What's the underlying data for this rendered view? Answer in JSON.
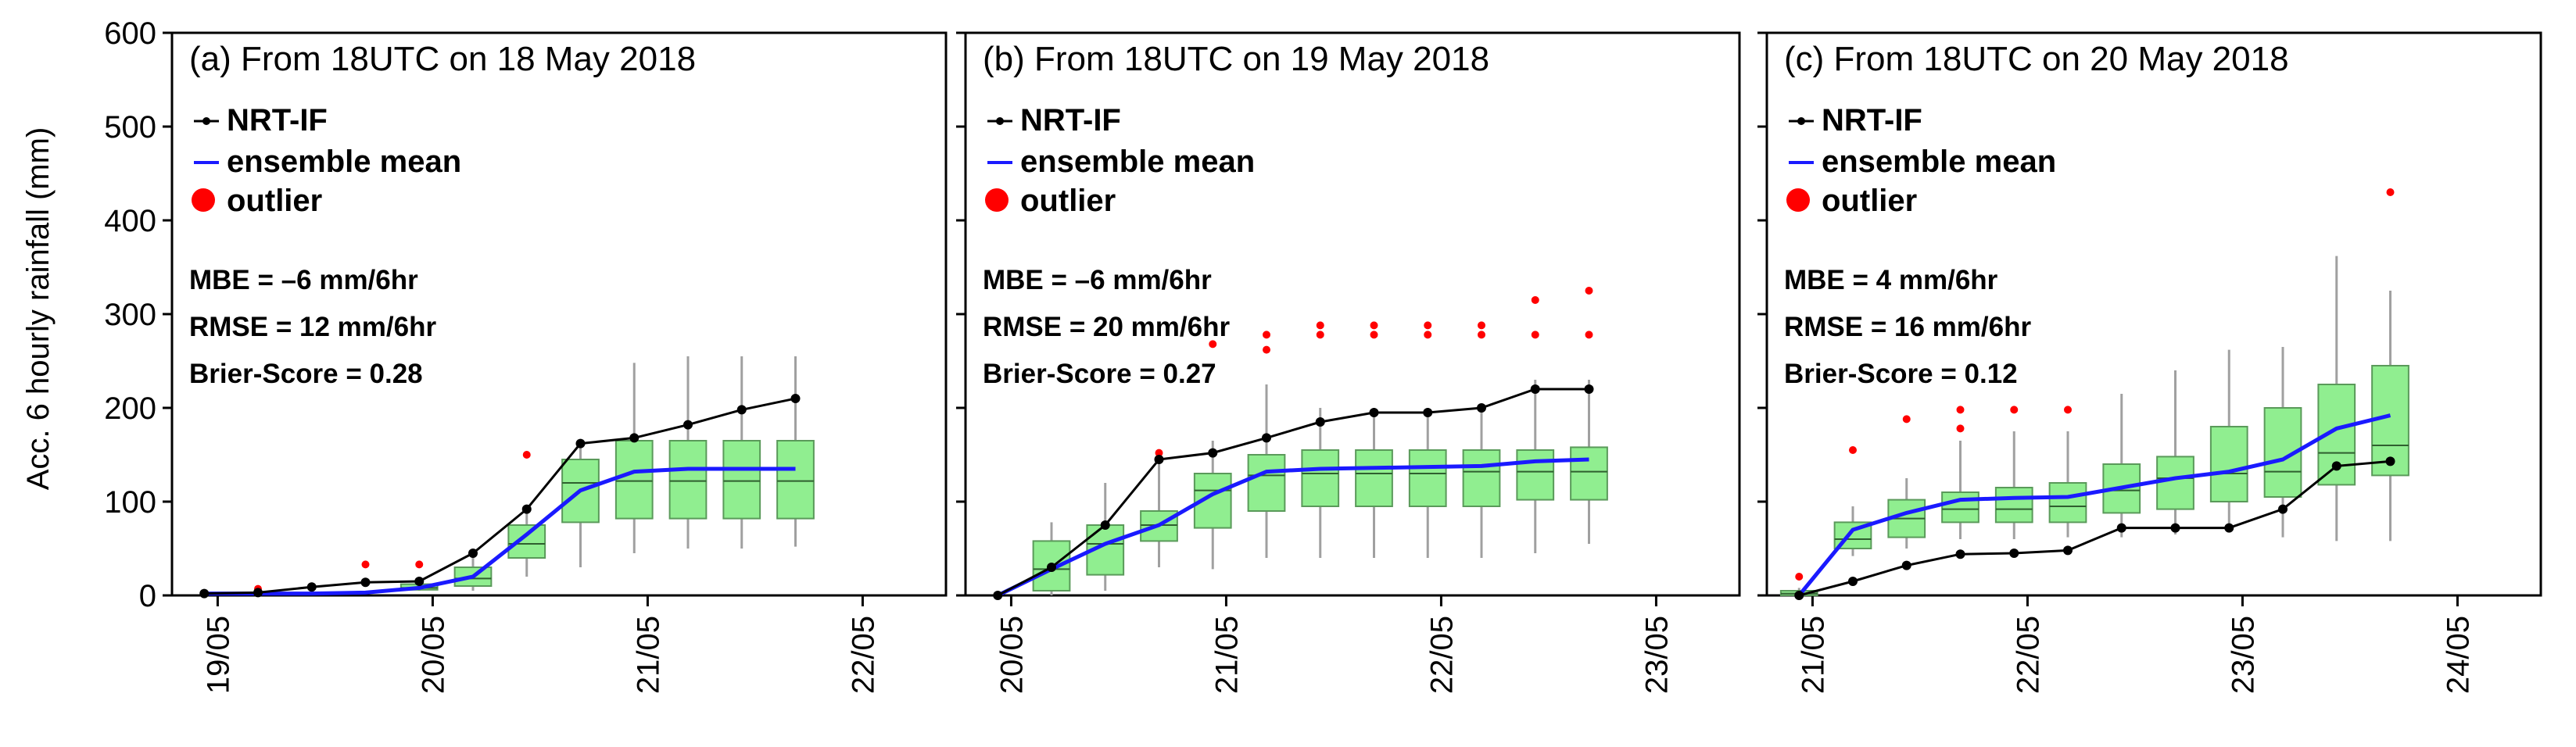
{
  "colors": {
    "nrt": "#000000",
    "mean": "#1a1aff",
    "outlier": "#ff0000",
    "box_fill": "#90ee90",
    "box_edge": "#5a9a5a",
    "whisker": "#a0a0a0"
  },
  "chart_data": [
    {
      "type": "box",
      "title": "(a) From 18UTC on 18 May 2018",
      "ylabel": "Acc. 6 hourly rainfall (mm)",
      "ylim": [
        0,
        600
      ],
      "yticks": [
        "0",
        "100",
        "200",
        "300",
        "400",
        "500",
        "600"
      ],
      "xlim": [
        -0.6,
        13.8
      ],
      "xticks": [
        {
          "label": "19/05",
          "pos": 0.25
        },
        {
          "label": "20/05",
          "pos": 4.25
        },
        {
          "label": "21/05",
          "pos": 8.25
        },
        {
          "label": "22/05",
          "pos": 12.25
        }
      ],
      "legend": {
        "nrt": "NRT-IF",
        "mean": "ensemble mean",
        "outlier": "outlier"
      },
      "stats": {
        "mbe": "MBE = –6 mm/6hr",
        "rmse": "RMSE = 12 mm/6hr",
        "brier": "Brier-Score = 0.28"
      },
      "nrt_if": [
        2,
        3,
        9,
        14,
        15,
        45,
        92,
        162,
        168,
        182,
        198,
        210
      ],
      "ensemble_mean": [
        2,
        2,
        2,
        3,
        8,
        20,
        65,
        112,
        132,
        135,
        135,
        135
      ],
      "boxes": [
        {
          "i": 4,
          "min": 5,
          "q1": 6,
          "median": 8,
          "q3": 12,
          "max": 18
        },
        {
          "i": 5,
          "min": 5,
          "q1": 10,
          "median": 18,
          "q3": 30,
          "max": 45
        },
        {
          "i": 6,
          "min": 20,
          "q1": 40,
          "median": 55,
          "q3": 75,
          "max": 92
        },
        {
          "i": 7,
          "min": 30,
          "q1": 78,
          "median": 120,
          "q3": 145,
          "max": 160
        },
        {
          "i": 8,
          "min": 45,
          "q1": 82,
          "median": 122,
          "q3": 165,
          "max": 248
        },
        {
          "i": 9,
          "min": 50,
          "q1": 82,
          "median": 122,
          "q3": 165,
          "max": 255
        },
        {
          "i": 10,
          "min": 50,
          "q1": 82,
          "median": 122,
          "q3": 165,
          "max": 255
        },
        {
          "i": 11,
          "min": 52,
          "q1": 82,
          "median": 122,
          "q3": 165,
          "max": 255
        }
      ],
      "outliers": [
        [
          1,
          7
        ],
        [
          3,
          33
        ],
        [
          4,
          33
        ],
        [
          6,
          150
        ]
      ]
    },
    {
      "type": "box",
      "title": "(b) From 18UTC on 19 May 2018",
      "ylim": [
        0,
        600
      ],
      "yticks": [
        "0",
        "100",
        "200",
        "300",
        "400",
        "500",
        "600"
      ],
      "xlim": [
        -0.6,
        13.8
      ],
      "xticks": [
        {
          "label": "20/05",
          "pos": 0.25
        },
        {
          "label": "21/05",
          "pos": 4.25
        },
        {
          "label": "22/05",
          "pos": 8.25
        },
        {
          "label": "23/05",
          "pos": 12.25
        }
      ],
      "legend": {
        "nrt": "NRT-IF",
        "mean": "ensemble mean",
        "outlier": "outlier"
      },
      "stats": {
        "mbe": "MBE = –6 mm/6hr",
        "rmse": "RMSE = 20 mm/6hr",
        "brier": "Brier-Score = 0.27"
      },
      "nrt_if": [
        0,
        30,
        75,
        145,
        152,
        168,
        185,
        195,
        195,
        200,
        220,
        220
      ],
      "ensemble_mean": [
        0,
        28,
        55,
        75,
        108,
        132,
        135,
        136,
        137,
        138,
        143,
        145
      ],
      "boxes": [
        {
          "i": 1,
          "min": 0,
          "q1": 5,
          "median": 28,
          "q3": 58,
          "max": 78
        },
        {
          "i": 2,
          "min": 5,
          "q1": 22,
          "median": 55,
          "q3": 75,
          "max": 120
        },
        {
          "i": 3,
          "min": 30,
          "q1": 58,
          "median": 75,
          "q3": 90,
          "max": 150
        },
        {
          "i": 4,
          "min": 28,
          "q1": 72,
          "median": 112,
          "q3": 130,
          "max": 165
        },
        {
          "i": 5,
          "min": 40,
          "q1": 90,
          "median": 128,
          "q3": 150,
          "max": 225
        },
        {
          "i": 6,
          "min": 40,
          "q1": 95,
          "median": 130,
          "q3": 155,
          "max": 200
        },
        {
          "i": 7,
          "min": 40,
          "q1": 95,
          "median": 130,
          "q3": 155,
          "max": 200
        },
        {
          "i": 8,
          "min": 40,
          "q1": 95,
          "median": 130,
          "q3": 155,
          "max": 200
        },
        {
          "i": 9,
          "min": 40,
          "q1": 95,
          "median": 132,
          "q3": 155,
          "max": 200
        },
        {
          "i": 10,
          "min": 45,
          "q1": 102,
          "median": 132,
          "q3": 155,
          "max": 230
        },
        {
          "i": 11,
          "min": 55,
          "q1": 102,
          "median": 132,
          "q3": 158,
          "max": 230
        }
      ],
      "outliers": [
        [
          3,
          152
        ],
        [
          4,
          268
        ],
        [
          5,
          262
        ],
        [
          5,
          278
        ],
        [
          6,
          278
        ],
        [
          6,
          288
        ],
        [
          7,
          278
        ],
        [
          7,
          288
        ],
        [
          8,
          278
        ],
        [
          8,
          288
        ],
        [
          9,
          278
        ],
        [
          9,
          288
        ],
        [
          10,
          278
        ],
        [
          10,
          315
        ],
        [
          11,
          278
        ],
        [
          11,
          325
        ]
      ]
    },
    {
      "type": "box",
      "title": "(c) From 18UTC on 20 May 2018",
      "ylim": [
        0,
        600
      ],
      "yticks": [
        "0",
        "100",
        "200",
        "300",
        "400",
        "500",
        "600"
      ],
      "xlim": [
        -0.6,
        13.8
      ],
      "xticks": [
        {
          "label": "21/05",
          "pos": 0.25
        },
        {
          "label": "22/05",
          "pos": 4.25
        },
        {
          "label": "23/05",
          "pos": 8.25
        },
        {
          "label": "24/05",
          "pos": 12.25
        }
      ],
      "legend": {
        "nrt": "NRT-IF",
        "mean": "ensemble mean",
        "outlier": "outlier"
      },
      "stats": {
        "mbe": "MBE = 4 mm/6hr",
        "rmse": "RMSE = 16 mm/6hr",
        "brier": "Brier-Score = 0.12"
      },
      "nrt_if": [
        0,
        15,
        32,
        44,
        45,
        48,
        72,
        72,
        72,
        92,
        138,
        143
      ],
      "ensemble_mean": [
        0,
        70,
        88,
        102,
        104,
        105,
        115,
        125,
        132,
        145,
        178,
        192
      ],
      "boxes": [
        {
          "i": 0,
          "min": 0,
          "q1": 0,
          "median": 2,
          "q3": 5,
          "max": 8
        },
        {
          "i": 1,
          "min": 42,
          "q1": 50,
          "median": 60,
          "q3": 78,
          "max": 95
        },
        {
          "i": 2,
          "min": 50,
          "q1": 62,
          "median": 82,
          "q3": 102,
          "max": 125
        },
        {
          "i": 3,
          "min": 60,
          "q1": 78,
          "median": 92,
          "q3": 110,
          "max": 165
        },
        {
          "i": 4,
          "min": 60,
          "q1": 78,
          "median": 92,
          "q3": 115,
          "max": 175
        },
        {
          "i": 5,
          "min": 62,
          "q1": 78,
          "median": 95,
          "q3": 120,
          "max": 175
        },
        {
          "i": 6,
          "min": 62,
          "q1": 88,
          "median": 112,
          "q3": 140,
          "max": 215
        },
        {
          "i": 7,
          "min": 65,
          "q1": 92,
          "median": 125,
          "q3": 148,
          "max": 240
        },
        {
          "i": 8,
          "min": 72,
          "q1": 100,
          "median": 130,
          "q3": 180,
          "max": 262
        },
        {
          "i": 9,
          "min": 62,
          "q1": 105,
          "median": 132,
          "q3": 200,
          "max": 265
        },
        {
          "i": 10,
          "min": 58,
          "q1": 118,
          "median": 152,
          "q3": 225,
          "max": 362
        },
        {
          "i": 11,
          "min": 58,
          "q1": 128,
          "median": 160,
          "q3": 245,
          "max": 325
        }
      ],
      "outliers": [
        [
          0,
          20
        ],
        [
          1,
          155
        ],
        [
          2,
          188
        ],
        [
          3,
          178
        ],
        [
          3,
          198
        ],
        [
          4,
          198
        ],
        [
          5,
          198
        ],
        [
          11,
          430
        ]
      ]
    }
  ]
}
